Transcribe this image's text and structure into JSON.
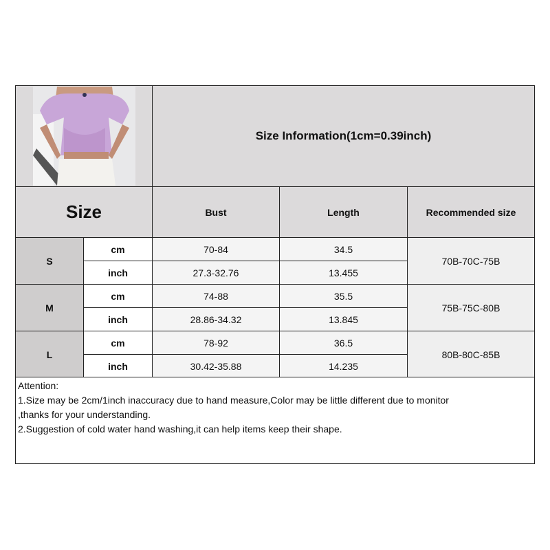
{
  "title": "Size Information(1cm=0.39inch)",
  "product_image": "purple lace puff-sleeve crop top photo",
  "headers": {
    "size": "Size",
    "bust": "Bust",
    "length": "Length",
    "recommended": "Recommended size"
  },
  "rows": [
    {
      "size": "S",
      "cm": {
        "unit": "cm",
        "bust": "70-84",
        "length": "34.5"
      },
      "inch": {
        "unit": "inch",
        "bust": "27.3-32.76",
        "length": "13.455"
      },
      "recommended": "70B-70C-75B"
    },
    {
      "size": "M",
      "cm": {
        "unit": "cm",
        "bust": "74-88",
        "length": "35.5"
      },
      "inch": {
        "unit": "inch",
        "bust": "28.86-34.32",
        "length": "13.845"
      },
      "recommended": "75B-75C-80B"
    },
    {
      "size": "L",
      "cm": {
        "unit": "cm",
        "bust": "78-92",
        "length": "36.5"
      },
      "inch": {
        "unit": "inch",
        "bust": "30.42-35.88",
        "length": "14.235"
      },
      "recommended": "80B-80C-85B"
    }
  ],
  "attention": [
    "Attention:",
    "1.Size may be 2cm/1inch inaccuracy due to hand measure,Color may be little different due to monitor",
    ",thanks for your understanding.",
    "2.Suggestion of cold water hand washing,it can help items keep their shape."
  ]
}
